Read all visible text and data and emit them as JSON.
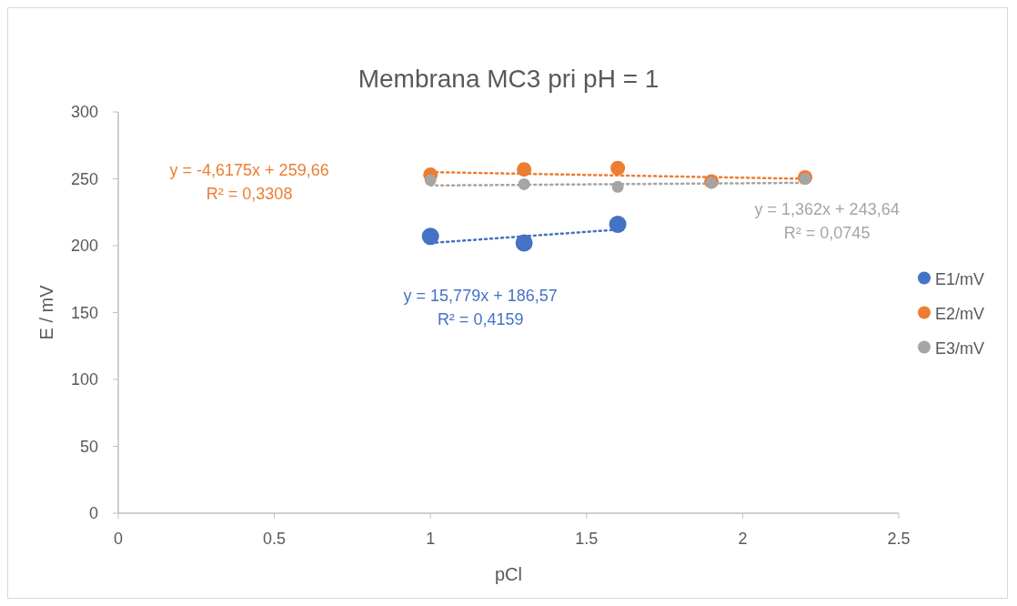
{
  "chart_data": {
    "type": "scatter",
    "title": "Membrana MC3 pri pH = 1",
    "xlabel": "pCl",
    "ylabel": "E / mV",
    "xlim": [
      0,
      2.5
    ],
    "xticks": [
      0,
      0.5,
      1,
      1.5,
      2,
      2.5
    ],
    "ylim": [
      0,
      300
    ],
    "yticks": [
      0,
      50,
      100,
      150,
      200,
      250,
      300
    ],
    "grid": false,
    "legend": "right",
    "series": [
      {
        "name": "E1/mV",
        "marker": "circle",
        "color": "#4472c4",
        "x": [
          1,
          1.3,
          1.6
        ],
        "values": [
          207,
          202,
          216
        ]
      },
      {
        "name": "E2/mV",
        "marker": "circle",
        "color": "#ed7d31",
        "x": [
          1,
          1.3,
          1.6,
          1.9,
          2.2
        ],
        "values": [
          253,
          257,
          258,
          248,
          251
        ]
      },
      {
        "name": "E3/mV",
        "marker": "circle",
        "color": "#a5a5a5",
        "x": [
          1,
          1.3,
          1.6,
          1.9,
          2.2
        ],
        "values": [
          249,
          246,
          244,
          247,
          250
        ]
      },
      {
        "type": "line",
        "line_style": "dotted",
        "marker": "none",
        "color": "#4472c4",
        "x": [
          1,
          1.6
        ],
        "values": [
          202,
          212
        ]
      },
      {
        "type": "line",
        "line_style": "dotted",
        "marker": "none",
        "color": "#ed7d31",
        "x": [
          1,
          2.2
        ],
        "values": [
          255,
          250
        ]
      },
      {
        "type": "line",
        "line_style": "dotted",
        "marker": "none",
        "color": "#a5a5a5",
        "x": [
          1,
          2.2
        ],
        "values": [
          245,
          247
        ]
      }
    ],
    "annotations": [
      "y = 15,779x + 186,57",
      "R² = 0,4159",
      "y = -4,6175x + 259,66",
      "R² = 0,3308",
      "y = 1,362x + 243,64",
      "R² = 0,0745"
    ]
  }
}
